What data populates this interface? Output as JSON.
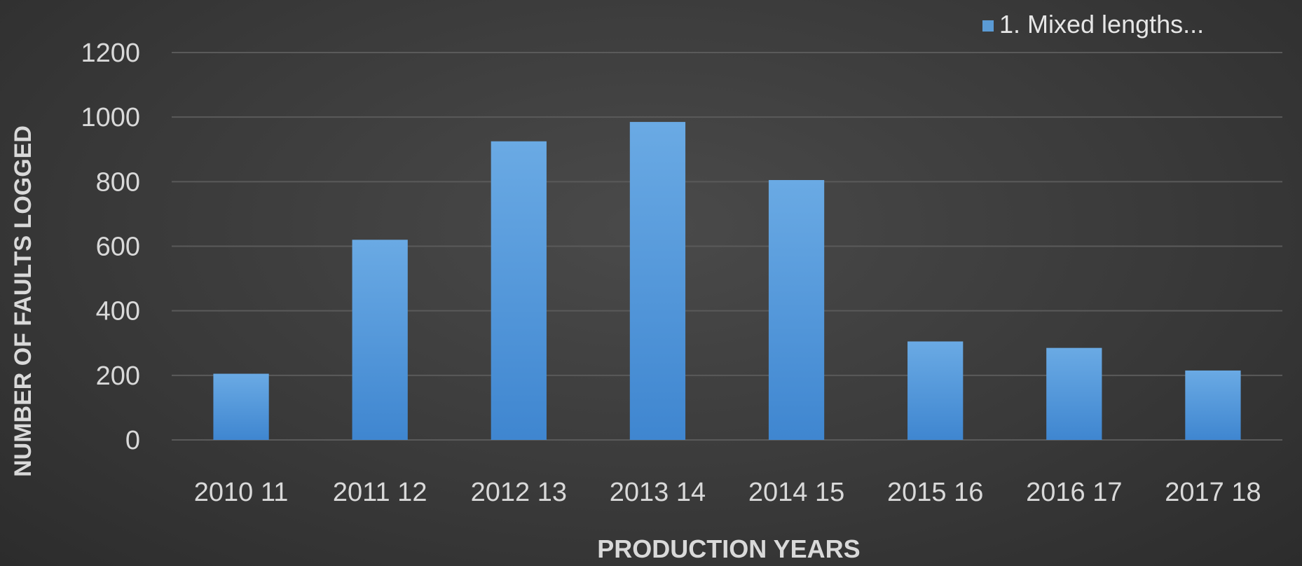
{
  "chart_data": {
    "type": "bar",
    "categories": [
      "2010 11",
      "2011 12",
      "2012 13",
      "2013 14",
      "2014 15",
      "2015 16",
      "2016 17",
      "2017 18"
    ],
    "series": [
      {
        "name": "1. Mixed lengths...",
        "values": [
          205,
          620,
          925,
          985,
          805,
          305,
          285,
          215
        ]
      }
    ],
    "xlabel": "PRODUCTION YEARS",
    "ylabel": "NUMBER OF FAULTS LOGGED",
    "ylim": [
      0,
      1200
    ],
    "yticks": [
      0,
      200,
      400,
      600,
      800,
      1000,
      1200
    ],
    "grid": true,
    "legend": "top-right",
    "colors": {
      "bar": "#5b9bd5",
      "grid": "#5a5a5a",
      "text": "#d9d9d9"
    }
  }
}
